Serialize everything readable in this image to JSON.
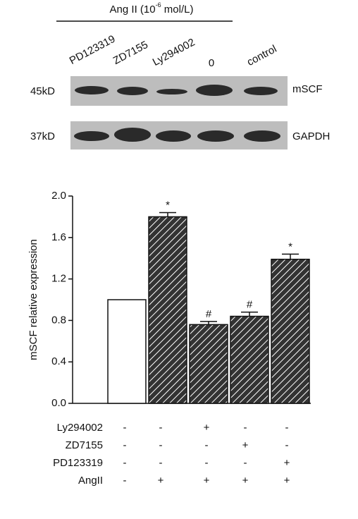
{
  "blot": {
    "header": {
      "prefix": "Ang II (10",
      "exponent": "-6",
      "suffix": " mol/L)"
    },
    "lanes": [
      "PD123319",
      "ZD7155",
      "Ly294002",
      "0",
      "control"
    ],
    "rows": [
      {
        "size": "45kD",
        "protein": "mSCF"
      },
      {
        "size": "37kD",
        "protein": "GAPDH"
      }
    ]
  },
  "chart_data": {
    "type": "bar",
    "y_label": "mSCF relative expression",
    "categories": [
      null,
      null,
      null,
      null,
      null
    ],
    "values": [
      1.0,
      1.8,
      0.76,
      0.84,
      1.39
    ],
    "errors": [
      null,
      0.04,
      0.03,
      0.04,
      0.05
    ],
    "annotations": [
      null,
      "*",
      "#",
      "#",
      "*"
    ],
    "colors": [
      "#ffffff",
      "#333333",
      "#333333",
      "#333333",
      "#333333"
    ],
    "hatched": [
      false,
      true,
      true,
      true,
      true
    ],
    "ylim": [
      0,
      2.0
    ],
    "yticks": [
      {
        "value": 0,
        "label": "0.0"
      },
      {
        "value": 0.4,
        "label": "0.4"
      },
      {
        "value": 0.8,
        "label": "0.8"
      },
      {
        "value": 1.2,
        "label": "1.2"
      },
      {
        "value": 1.6,
        "label": "1.6"
      },
      {
        "value": 2.0,
        "label": "2.0"
      }
    ]
  },
  "treatment_table": {
    "rows": [
      {
        "label": "Ly294002",
        "signs": [
          "-",
          "-",
          "+",
          "-",
          "-"
        ]
      },
      {
        "label": "ZD7155",
        "signs": [
          "-",
          "-",
          "-",
          "+",
          "-"
        ]
      },
      {
        "label": "PD123319",
        "signs": [
          "-",
          "-",
          "-",
          "-",
          "+"
        ]
      },
      {
        "label": "AngII",
        "signs": [
          "-",
          "+",
          "+",
          "+",
          "+"
        ]
      }
    ]
  }
}
